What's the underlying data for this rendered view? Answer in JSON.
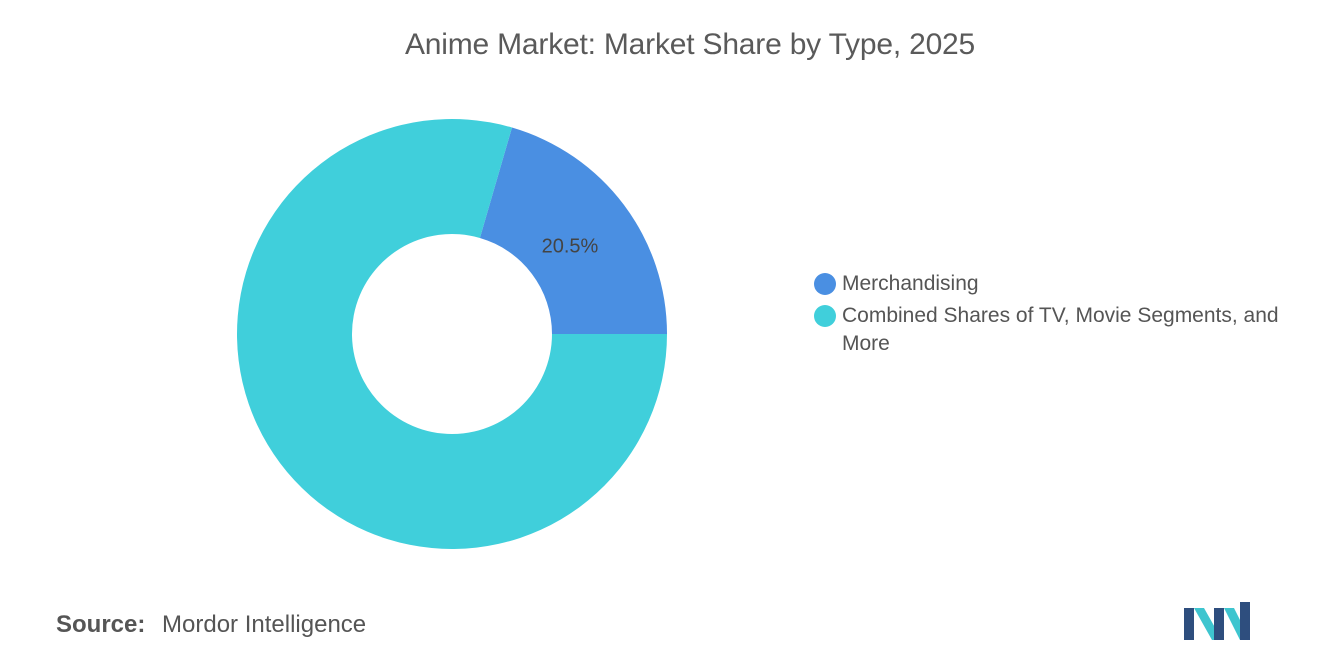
{
  "title": "Anime Market: Market Share by Type, 2025",
  "chart_data": {
    "type": "pie",
    "variant": "donut",
    "title": "Anime Market: Market Share by Type, 2025",
    "categories": [
      "Merchandising",
      "Combined Shares of TV, Movie Segments, and More"
    ],
    "values": [
      20.5,
      79.5
    ],
    "unit": "%",
    "data_labels": [
      "20.5%",
      ""
    ],
    "colors": [
      "#4a8fe2",
      "#40cfdb"
    ],
    "legend_placement": "right"
  },
  "legend": {
    "items": [
      {
        "label": "Merchandising",
        "color": "#4a8fe2"
      },
      {
        "label": "Combined Shares of TV, Movie Segments, and More",
        "color": "#40cfdb"
      }
    ]
  },
  "source": {
    "label": "Source:",
    "value": "Mordor Intelligence"
  },
  "logo": {
    "icon": "mordor-intelligence-logo",
    "colors": [
      "#2e4e7e",
      "#3ec5cf"
    ]
  }
}
